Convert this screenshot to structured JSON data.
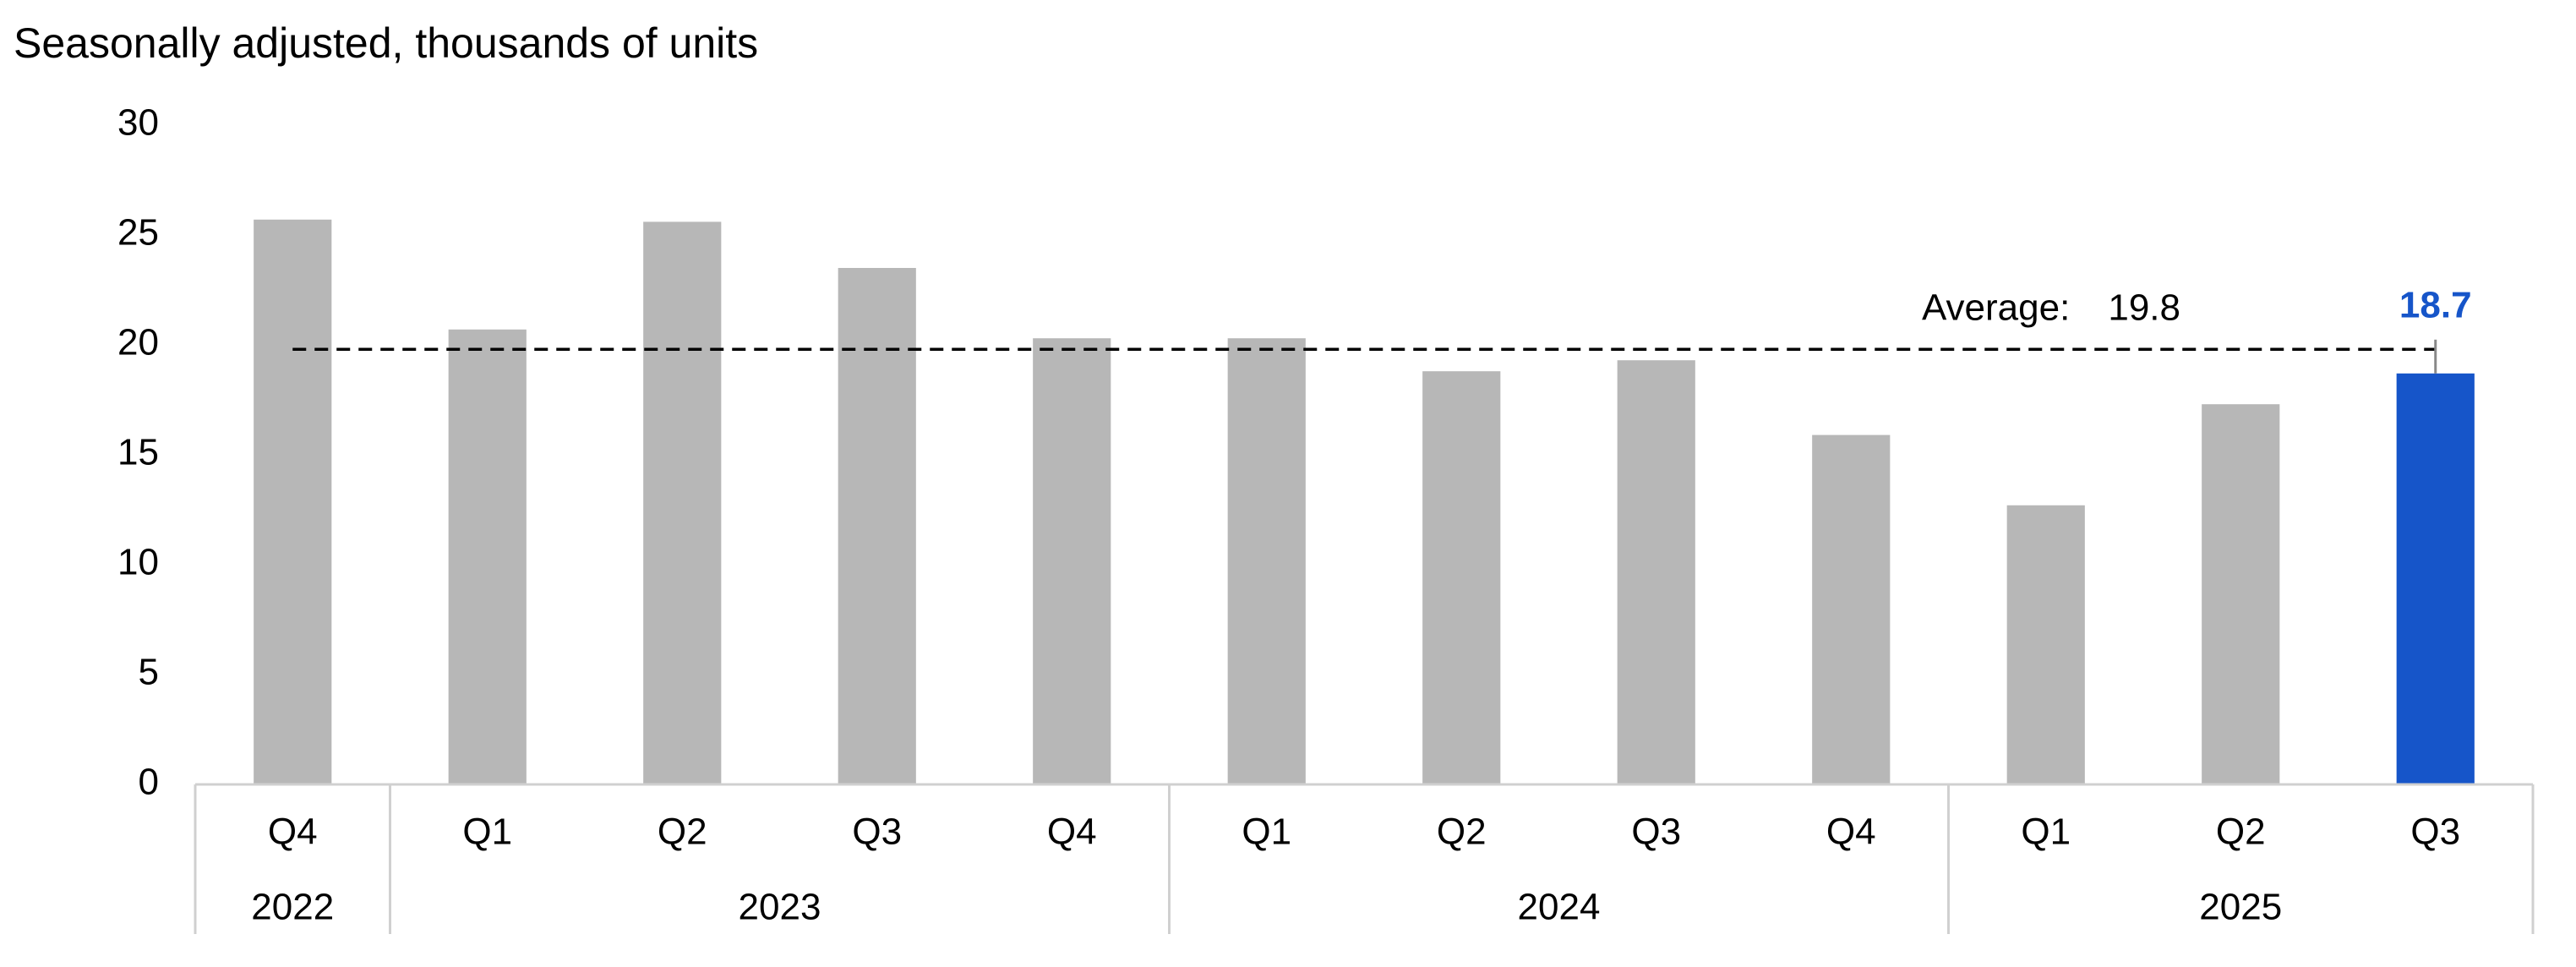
{
  "chart_data": {
    "type": "bar",
    "title": "Seasonally adjusted, thousands of units",
    "categories": [
      "Q4",
      "Q1",
      "Q2",
      "Q3",
      "Q4",
      "Q1",
      "Q2",
      "Q3",
      "Q4",
      "Q1",
      "Q2",
      "Q3"
    ],
    "groups": [
      {
        "label": "2022",
        "span": 1
      },
      {
        "label": "2023",
        "span": 4
      },
      {
        "label": "2024",
        "span": 4
      },
      {
        "label": "2025",
        "span": 3
      }
    ],
    "values": [
      25.7,
      20.7,
      25.6,
      23.5,
      20.3,
      20.3,
      18.8,
      19.3,
      15.9,
      12.7,
      17.3,
      18.7
    ],
    "colors": [
      "#b7b7b7",
      "#b7b7b7",
      "#b7b7b7",
      "#b7b7b7",
      "#b7b7b7",
      "#b7b7b7",
      "#b7b7b7",
      "#b7b7b7",
      "#b7b7b7",
      "#b7b7b7",
      "#b7b7b7",
      "#1655c9"
    ],
    "highlight": {
      "index": 11,
      "label": "18.7",
      "color": "#1655c9"
    },
    "average": {
      "label": "Average:",
      "value": 19.8
    },
    "ylim": [
      0,
      30
    ],
    "yticks": [
      0,
      5,
      10,
      15,
      20,
      25,
      30
    ],
    "grid": false
  }
}
